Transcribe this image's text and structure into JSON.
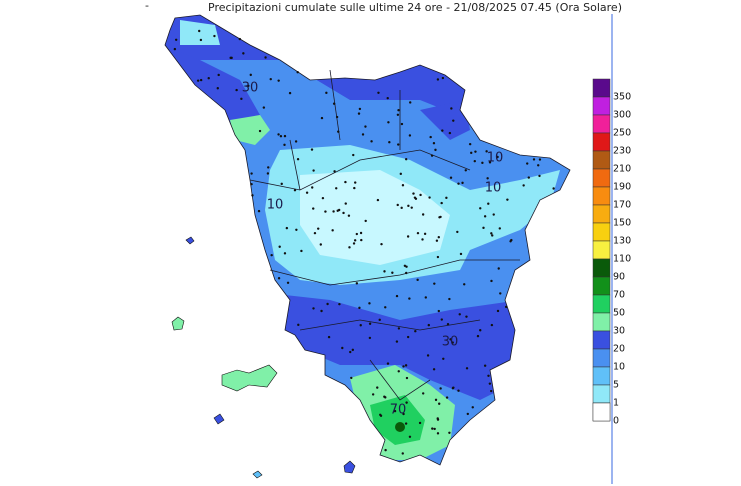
{
  "header": {
    "marker": "-",
    "title": "Precipitazioni cumulate sulle ultime 24 ore - 21/08/2025 07.45 (Ora Solare)"
  },
  "map": {
    "labels": [
      {
        "text": "30",
        "region": "north"
      },
      {
        "text": "10",
        "region": "north-east"
      },
      {
        "text": "10",
        "region": "east"
      },
      {
        "text": "10",
        "region": "west"
      },
      {
        "text": "30",
        "region": "south"
      },
      {
        "text": "70",
        "region": "south-west"
      }
    ]
  },
  "legend": {
    "items": [
      {
        "label": "350",
        "color": "#8a2be2"
      },
      {
        "label": "300",
        "color": "#c020e0"
      },
      {
        "label": "250",
        "color": "#f0209a"
      },
      {
        "label": "230",
        "color": "#e01818"
      },
      {
        "label": "210",
        "color": "#b05a14"
      },
      {
        "label": "190",
        "color": "#f06a10"
      },
      {
        "label": "170",
        "color": "#f88c10"
      },
      {
        "label": "150",
        "color": "#f8ac10"
      },
      {
        "label": "130",
        "color": "#f8d010"
      },
      {
        "label": "110",
        "color": "#f8f040"
      },
      {
        "label": "90",
        "color": "#0a5a0a"
      },
      {
        "label": "70",
        "color": "#12901a"
      },
      {
        "label": "50",
        "color": "#20d060"
      },
      {
        "label": "30",
        "color": "#80f0a8"
      },
      {
        "label": "20",
        "color": "#3a50e0"
      },
      {
        "label": "10",
        "color": "#4a90f0"
      },
      {
        "label": "5",
        "color": "#60c0f8"
      },
      {
        "label": "1",
        "color": "#90e8f8"
      },
      {
        "label": "0",
        "color": "#c8f8ff"
      }
    ],
    "top_color": "#5a0a8c",
    "bottom_color": "#ffffff"
  }
}
